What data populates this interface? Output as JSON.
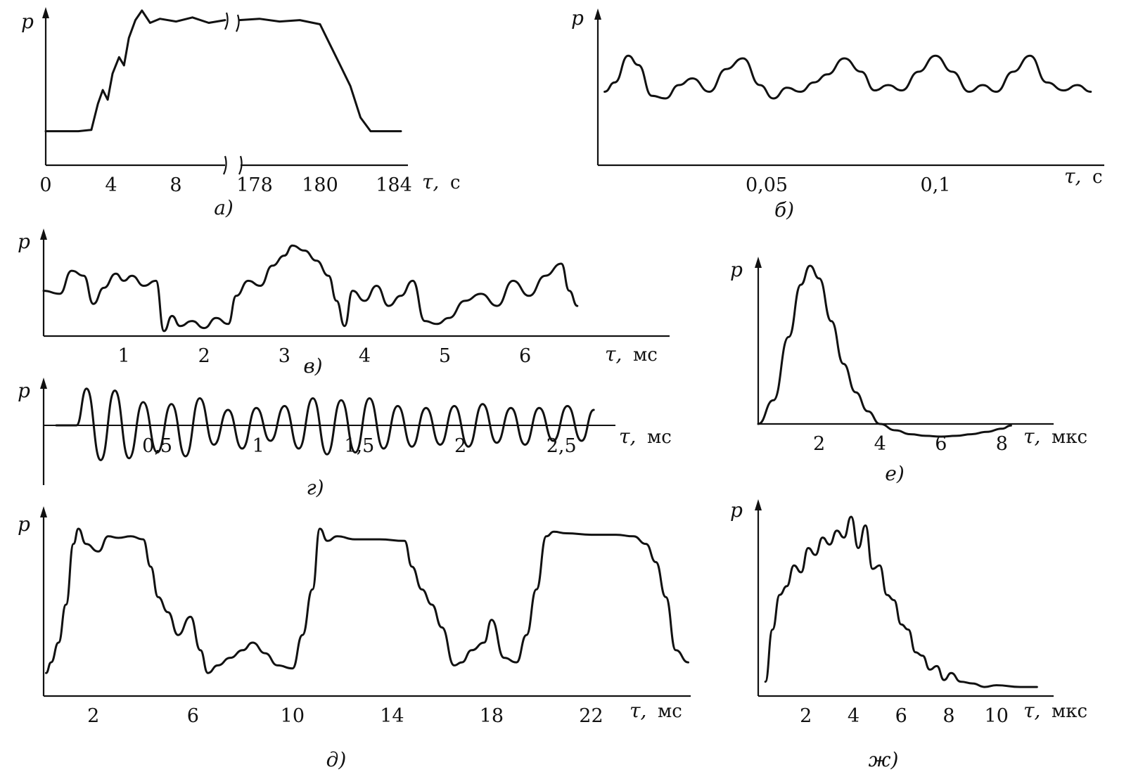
{
  "chart_data": [
    {
      "type": "line",
      "panel": "а)",
      "ylabel": "p",
      "xlabel": "τ, с",
      "xlabel_var": "τ,",
      "xlabel_unit": "с",
      "axis_break": "between 8 and 178",
      "x_ticks": [
        "0",
        "4",
        "8",
        "178",
        "180",
        "184"
      ],
      "series": [
        {
          "x": [
            0,
            1,
            2,
            2.8,
            3.2,
            3.5,
            3.8,
            4.1,
            4.5,
            4.8,
            5.1,
            5.5,
            5.9,
            6.4,
            7,
            8,
            9,
            10,
            11
          ],
          "y": [
            0.12,
            0.12,
            0.12,
            0.13,
            0.32,
            0.42,
            0.35,
            0.54,
            0.66,
            0.6,
            0.8,
            0.93,
            1.0,
            0.91,
            0.94,
            0.92,
            0.95,
            0.91,
            0.93
          ]
        },
        {
          "x": [
            177,
            178,
            179,
            180,
            181,
            181.5,
            182,
            182.5,
            183,
            183.5,
            184,
            185
          ],
          "y": [
            0.93,
            0.94,
            0.92,
            0.93,
            0.9,
            0.75,
            0.6,
            0.45,
            0.22,
            0.12,
            0.12,
            0.12
          ]
        }
      ]
    },
    {
      "type": "line",
      "panel": "б)",
      "ylabel": "p",
      "xlabel": "τ, с",
      "xlabel_var": "τ,",
      "xlabel_unit": "с",
      "x_ticks": [
        "0,05",
        "0,1"
      ],
      "x_tick_values": [
        0.05,
        0.1
      ],
      "xlim": [
        0,
        0.15
      ],
      "series": [
        {
          "x": [
            0.002,
            0.005,
            0.009,
            0.012,
            0.016,
            0.02,
            0.024,
            0.028,
            0.033,
            0.038,
            0.043,
            0.048,
            0.052,
            0.056,
            0.06,
            0.064,
            0.068,
            0.073,
            0.078,
            0.082,
            0.086,
            0.09,
            0.095,
            0.1,
            0.105,
            0.11,
            0.114,
            0.118,
            0.123,
            0.128,
            0.133,
            0.138,
            0.142,
            0.146
          ],
          "y": [
            0.55,
            0.62,
            0.82,
            0.75,
            0.52,
            0.5,
            0.6,
            0.65,
            0.55,
            0.72,
            0.8,
            0.6,
            0.5,
            0.58,
            0.55,
            0.62,
            0.68,
            0.8,
            0.7,
            0.56,
            0.6,
            0.56,
            0.7,
            0.82,
            0.7,
            0.55,
            0.6,
            0.55,
            0.7,
            0.82,
            0.62,
            0.56,
            0.6,
            0.55
          ]
        }
      ]
    },
    {
      "type": "line",
      "panel": "в)",
      "ylabel": "p",
      "xlabel": "τ, мс",
      "xlabel_var": "τ,",
      "xlabel_unit": "мс",
      "x_ticks": [
        "1",
        "2",
        "3",
        "4",
        "5",
        "6"
      ],
      "x_tick_values": [
        1,
        2,
        3,
        4,
        5,
        6
      ],
      "xlim": [
        0,
        7.8
      ],
      "series": [
        {
          "x": [
            0,
            0.2,
            0.35,
            0.5,
            0.62,
            0.75,
            0.9,
            1.0,
            1.1,
            1.25,
            1.4,
            1.5,
            1.6,
            1.7,
            1.85,
            2.0,
            2.15,
            2.3,
            2.4,
            2.55,
            2.7,
            2.85,
            3.0,
            3.1,
            3.25,
            3.4,
            3.55,
            3.65,
            3.75,
            3.85,
            4.0,
            4.15,
            4.3,
            4.45,
            4.6,
            4.75,
            4.9,
            5.05,
            5.25,
            5.45,
            5.65,
            5.85,
            6.05,
            6.25,
            6.45,
            6.55,
            6.65
          ],
          "y": [
            0.45,
            0.42,
            0.65,
            0.6,
            0.32,
            0.48,
            0.62,
            0.55,
            0.6,
            0.5,
            0.55,
            0.05,
            0.2,
            0.1,
            0.15,
            0.08,
            0.18,
            0.12,
            0.4,
            0.55,
            0.5,
            0.7,
            0.8,
            0.9,
            0.85,
            0.75,
            0.6,
            0.35,
            0.1,
            0.45,
            0.35,
            0.5,
            0.3,
            0.4,
            0.55,
            0.15,
            0.12,
            0.18,
            0.35,
            0.42,
            0.3,
            0.55,
            0.4,
            0.6,
            0.72,
            0.45,
            0.3
          ]
        }
      ]
    },
    {
      "type": "line",
      "panel": "г)",
      "ylabel": "p",
      "xlabel": "τ, мс",
      "xlabel_var": "τ,",
      "xlabel_unit": "мс",
      "x_ticks": [
        "0,5",
        "1",
        "1,5",
        "2",
        "2,5"
      ],
      "x_tick_values": [
        0.5,
        1.0,
        1.5,
        2.0,
        2.5
      ],
      "xlim": [
        0,
        2.75
      ],
      "series": [
        {
          "x": [
            0.0,
            0.1,
            0.15,
            0.22,
            0.29,
            0.36,
            0.43,
            0.5,
            0.57,
            0.64,
            0.71,
            0.78,
            0.85,
            0.92,
            0.99,
            1.06,
            1.13,
            1.2,
            1.27,
            1.34,
            1.41,
            1.48,
            1.55,
            1.62,
            1.69,
            1.76,
            1.83,
            1.9,
            1.97,
            2.04,
            2.11,
            2.18,
            2.25,
            2.32,
            2.39,
            2.46,
            2.53,
            2.6,
            2.66
          ],
          "y": [
            0.0,
            0.0,
            0.95,
            -0.9,
            0.9,
            -0.85,
            0.6,
            -0.7,
            0.55,
            -0.8,
            0.7,
            -0.5,
            0.4,
            -0.6,
            0.45,
            -0.4,
            0.5,
            -0.6,
            0.7,
            -0.75,
            0.65,
            -0.7,
            0.7,
            -0.6,
            0.5,
            -0.55,
            0.45,
            -0.5,
            0.5,
            -0.55,
            0.55,
            -0.45,
            0.45,
            -0.5,
            0.45,
            -0.4,
            0.5,
            -0.4,
            0.4
          ]
        }
      ]
    },
    {
      "type": "line",
      "panel": "д)",
      "ylabel": "p",
      "xlabel": "τ, мс",
      "xlabel_var": "τ,",
      "xlabel_unit": "мс",
      "x_ticks": [
        "2",
        "6",
        "10",
        "14",
        "18",
        "22"
      ],
      "x_tick_values": [
        2,
        6,
        10,
        14,
        18,
        22
      ],
      "xlim": [
        0,
        26
      ],
      "series": [
        {
          "x": [
            0.1,
            0.3,
            0.6,
            0.9,
            1.2,
            1.4,
            1.7,
            2.2,
            2.6,
            3.0,
            3.5,
            4.0,
            4.3,
            4.6,
            5.0,
            5.4,
            5.9,
            6.3,
            6.6,
            7.0,
            7.5,
            8.0,
            8.4,
            8.9,
            9.4,
            10.0,
            10.4,
            10.8,
            11.1,
            11.4,
            11.8,
            12.5,
            13.5,
            14.5,
            14.8,
            15.2,
            15.6,
            16.0,
            16.5,
            16.8,
            17.2,
            17.7,
            18.0,
            18.5,
            19.0,
            19.4,
            19.8,
            20.2,
            20.5,
            21.0,
            22.0,
            23.0,
            23.7,
            24.2,
            24.6,
            25.0,
            25.4,
            25.9
          ],
          "y": [
            0.05,
            0.12,
            0.25,
            0.5,
            0.9,
            1.0,
            0.9,
            0.85,
            0.95,
            0.94,
            0.95,
            0.93,
            0.75,
            0.55,
            0.45,
            0.3,
            0.42,
            0.2,
            0.05,
            0.1,
            0.15,
            0.2,
            0.25,
            0.18,
            0.1,
            0.08,
            0.3,
            0.6,
            1.0,
            0.92,
            0.95,
            0.93,
            0.93,
            0.92,
            0.75,
            0.6,
            0.5,
            0.35,
            0.1,
            0.12,
            0.2,
            0.25,
            0.4,
            0.15,
            0.12,
            0.3,
            0.6,
            0.95,
            0.98,
            0.97,
            0.96,
            0.96,
            0.95,
            0.9,
            0.78,
            0.55,
            0.2,
            0.12
          ]
        }
      ]
    },
    {
      "type": "line",
      "panel": "е)",
      "ylabel": "p",
      "xlabel": "τ, мкс",
      "xlabel_var": "τ,",
      "xlabel_unit": "мкс",
      "x_ticks": [
        "2",
        "4",
        "6",
        "8"
      ],
      "x_tick_values": [
        2,
        4,
        6,
        8
      ],
      "xlim": [
        0,
        9.7
      ],
      "series": [
        {
          "x": [
            0,
            0.5,
            1.0,
            1.4,
            1.7,
            2.0,
            2.4,
            2.8,
            3.2,
            3.6,
            4.0,
            4.5,
            5.0,
            5.5,
            6.0,
            6.5,
            7.0,
            7.5,
            8.0,
            8.3
          ],
          "y": [
            0.0,
            0.15,
            0.55,
            0.88,
            1.0,
            0.92,
            0.65,
            0.38,
            0.2,
            0.08,
            0.0,
            -0.04,
            -0.065,
            -0.075,
            -0.08,
            -0.075,
            -0.065,
            -0.05,
            -0.03,
            -0.01
          ]
        }
      ]
    },
    {
      "type": "line",
      "panel": "ж)",
      "ylabel": "p",
      "xlabel": "τ, мкс",
      "xlabel_var": "τ,",
      "xlabel_unit": "мкс",
      "x_ticks": [
        "2",
        "4",
        "6",
        "8",
        "10"
      ],
      "x_tick_values": [
        2,
        4,
        6,
        8,
        10
      ],
      "xlim": [
        0,
        12.4
      ],
      "series": [
        {
          "x": [
            0.3,
            0.6,
            0.9,
            1.2,
            1.5,
            1.8,
            2.1,
            2.4,
            2.7,
            3.0,
            3.3,
            3.6,
            3.9,
            4.2,
            4.5,
            4.8,
            5.1,
            5.4,
            5.7,
            6.0,
            6.3,
            6.6,
            6.9,
            7.2,
            7.5,
            7.8,
            8.1,
            8.5,
            9.0,
            9.5,
            10,
            11,
            11.7
          ],
          "y": [
            0.05,
            0.35,
            0.55,
            0.6,
            0.72,
            0.68,
            0.82,
            0.78,
            0.88,
            0.84,
            0.92,
            0.88,
            1.0,
            0.82,
            0.95,
            0.7,
            0.72,
            0.55,
            0.52,
            0.38,
            0.35,
            0.22,
            0.2,
            0.12,
            0.14,
            0.06,
            0.1,
            0.05,
            0.04,
            0.02,
            0.03,
            0.02,
            0.02
          ]
        }
      ]
    }
  ]
}
